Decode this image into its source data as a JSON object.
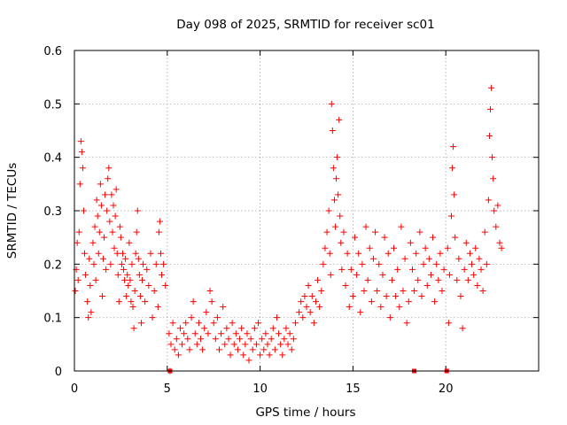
{
  "chart_data": {
    "type": "scatter",
    "title": "Day 098 of 2025, SRMTID for receiver sc01",
    "xlabel": "GPS time / hours",
    "ylabel": "SRMTID / TECUs",
    "xlim": [
      0,
      25
    ],
    "ylim": [
      0,
      0.6
    ],
    "xticks": [
      0,
      5,
      10,
      15,
      20
    ],
    "xtick_labels": [
      "0",
      "5",
      "10",
      "15",
      "20"
    ],
    "yticks": [
      0,
      0.1,
      0.2,
      0.3,
      0.4,
      0.5,
      0.6
    ],
    "ytick_labels": [
      "0",
      "0.1",
      "0.2",
      "0.3",
      "0.4",
      "0.5",
      "0.6"
    ],
    "grid": true,
    "marker": "plus",
    "color": "#ff0000",
    "series": [
      {
        "name": "sc01",
        "points": [
          [
            0.05,
            0.15
          ],
          [
            0.1,
            0.19
          ],
          [
            0.15,
            0.24
          ],
          [
            0.2,
            0.17
          ],
          [
            0.25,
            0.26
          ],
          [
            0.3,
            0.35
          ],
          [
            0.35,
            0.43
          ],
          [
            0.4,
            0.41
          ],
          [
            0.45,
            0.38
          ],
          [
            0.5,
            0.3
          ],
          [
            0.55,
            0.22
          ],
          [
            0.6,
            0.18
          ],
          [
            0.7,
            0.13
          ],
          [
            0.75,
            0.1
          ],
          [
            0.8,
            0.21
          ],
          [
            0.85,
            0.16
          ],
          [
            0.9,
            0.11
          ],
          [
            1.0,
            0.24
          ],
          [
            1.05,
            0.2
          ],
          [
            1.1,
            0.27
          ],
          [
            1.15,
            0.17
          ],
          [
            1.2,
            0.32
          ],
          [
            1.25,
            0.29
          ],
          [
            1.3,
            0.22
          ],
          [
            1.35,
            0.26
          ],
          [
            1.4,
            0.35
          ],
          [
            1.45,
            0.31
          ],
          [
            1.5,
            0.14
          ],
          [
            1.55,
            0.21
          ],
          [
            1.6,
            0.25
          ],
          [
            1.65,
            0.33
          ],
          [
            1.7,
            0.19
          ],
          [
            1.75,
            0.3
          ],
          [
            1.8,
            0.36
          ],
          [
            1.85,
            0.38
          ],
          [
            1.9,
            0.28
          ],
          [
            1.95,
            0.2
          ],
          [
            2.0,
            0.33
          ],
          [
            2.05,
            0.26
          ],
          [
            2.1,
            0.31
          ],
          [
            2.15,
            0.23
          ],
          [
            2.2,
            0.29
          ],
          [
            2.25,
            0.34
          ],
          [
            2.3,
            0.22
          ],
          [
            2.35,
            0.18
          ],
          [
            2.4,
            0.13
          ],
          [
            2.45,
            0.27
          ],
          [
            2.5,
            0.25
          ],
          [
            2.55,
            0.2
          ],
          [
            2.6,
            0.22
          ],
          [
            2.65,
            0.19
          ],
          [
            2.7,
            0.17
          ],
          [
            2.75,
            0.21
          ],
          [
            2.8,
            0.14
          ],
          [
            2.85,
            0.18
          ],
          [
            2.9,
            0.16
          ],
          [
            2.95,
            0.24
          ],
          [
            3.0,
            0.17
          ],
          [
            3.05,
            0.13
          ],
          [
            3.1,
            0.2
          ],
          [
            3.15,
            0.12
          ],
          [
            3.2,
            0.08
          ],
          [
            3.25,
            0.15
          ],
          [
            3.3,
            0.22
          ],
          [
            3.35,
            0.26
          ],
          [
            3.4,
            0.3
          ],
          [
            3.45,
            0.21
          ],
          [
            3.5,
            0.18
          ],
          [
            3.55,
            0.14
          ],
          [
            3.6,
            0.09
          ],
          [
            3.65,
            0.17
          ],
          [
            3.7,
            0.2
          ],
          [
            3.8,
            0.13
          ],
          [
            3.9,
            0.19
          ],
          [
            4.0,
            0.16
          ],
          [
            4.1,
            0.22
          ],
          [
            4.2,
            0.1
          ],
          [
            4.3,
            0.15
          ],
          [
            4.4,
            0.2
          ],
          [
            4.5,
            0.12
          ],
          [
            4.55,
            0.26
          ],
          [
            4.6,
            0.28
          ],
          [
            4.65,
            0.22
          ],
          [
            4.7,
            0.18
          ],
          [
            4.8,
            0.2
          ],
          [
            4.9,
            0.16
          ],
          [
            5.1,
            0.07
          ],
          [
            5.15,
            0.0
          ],
          [
            5.2,
            0.05
          ],
          [
            5.3,
            0.09
          ],
          [
            5.4,
            0.04
          ],
          [
            5.5,
            0.06
          ],
          [
            5.6,
            0.03
          ],
          [
            5.7,
            0.08
          ],
          [
            5.8,
            0.05
          ],
          [
            5.9,
            0.07
          ],
          [
            6.0,
            0.09
          ],
          [
            6.1,
            0.06
          ],
          [
            6.2,
            0.04
          ],
          [
            6.3,
            0.1
          ],
          [
            6.4,
            0.13
          ],
          [
            6.5,
            0.07
          ],
          [
            6.6,
            0.05
          ],
          [
            6.7,
            0.09
          ],
          [
            6.8,
            0.06
          ],
          [
            6.9,
            0.04
          ],
          [
            7.0,
            0.08
          ],
          [
            7.1,
            0.11
          ],
          [
            7.2,
            0.07
          ],
          [
            7.3,
            0.15
          ],
          [
            7.4,
            0.13
          ],
          [
            7.5,
            0.09
          ],
          [
            7.6,
            0.06
          ],
          [
            7.7,
            0.1
          ],
          [
            7.8,
            0.04
          ],
          [
            7.9,
            0.07
          ],
          [
            8.0,
            0.12
          ],
          [
            8.1,
            0.05
          ],
          [
            8.2,
            0.08
          ],
          [
            8.3,
            0.06
          ],
          [
            8.4,
            0.03
          ],
          [
            8.5,
            0.09
          ],
          [
            8.6,
            0.05
          ],
          [
            8.7,
            0.07
          ],
          [
            8.8,
            0.04
          ],
          [
            8.9,
            0.06
          ],
          [
            9.0,
            0.08
          ],
          [
            9.1,
            0.03
          ],
          [
            9.2,
            0.05
          ],
          [
            9.3,
            0.07
          ],
          [
            9.4,
            0.02
          ],
          [
            9.5,
            0.06
          ],
          [
            9.6,
            0.04
          ],
          [
            9.7,
            0.08
          ],
          [
            9.8,
            0.05
          ],
          [
            9.9,
            0.09
          ],
          [
            10.0,
            0.03
          ],
          [
            10.1,
            0.06
          ],
          [
            10.2,
            0.04
          ],
          [
            10.3,
            0.07
          ],
          [
            10.4,
            0.05
          ],
          [
            10.5,
            0.03
          ],
          [
            10.6,
            0.06
          ],
          [
            10.7,
            0.08
          ],
          [
            10.8,
            0.04
          ],
          [
            10.9,
            0.1
          ],
          [
            11.0,
            0.07
          ],
          [
            11.1,
            0.05
          ],
          [
            11.2,
            0.03
          ],
          [
            11.3,
            0.06
          ],
          [
            11.4,
            0.08
          ],
          [
            11.5,
            0.05
          ],
          [
            11.6,
            0.07
          ],
          [
            11.7,
            0.04
          ],
          [
            11.8,
            0.06
          ],
          [
            11.9,
            0.09
          ],
          [
            12.1,
            0.11
          ],
          [
            12.2,
            0.13
          ],
          [
            12.3,
            0.1
          ],
          [
            12.4,
            0.14
          ],
          [
            12.5,
            0.12
          ],
          [
            12.6,
            0.16
          ],
          [
            12.7,
            0.11
          ],
          [
            12.8,
            0.14
          ],
          [
            12.9,
            0.09
          ],
          [
            13.0,
            0.13
          ],
          [
            13.1,
            0.17
          ],
          [
            13.2,
            0.12
          ],
          [
            13.3,
            0.15
          ],
          [
            13.4,
            0.2
          ],
          [
            13.5,
            0.23
          ],
          [
            13.6,
            0.26
          ],
          [
            13.7,
            0.3
          ],
          [
            13.75,
            0.22
          ],
          [
            13.8,
            0.18
          ],
          [
            13.85,
            0.5
          ],
          [
            13.9,
            0.45
          ],
          [
            13.95,
            0.38
          ],
          [
            14.0,
            0.32
          ],
          [
            14.05,
            0.27
          ],
          [
            14.1,
            0.36
          ],
          [
            14.15,
            0.4
          ],
          [
            14.2,
            0.33
          ],
          [
            14.25,
            0.47
          ],
          [
            14.3,
            0.29
          ],
          [
            14.35,
            0.24
          ],
          [
            14.4,
            0.19
          ],
          [
            14.5,
            0.26
          ],
          [
            14.6,
            0.16
          ],
          [
            14.7,
            0.22
          ],
          [
            14.8,
            0.12
          ],
          [
            14.9,
            0.19
          ],
          [
            15.0,
            0.14
          ],
          [
            15.1,
            0.25
          ],
          [
            15.2,
            0.18
          ],
          [
            15.3,
            0.22
          ],
          [
            15.4,
            0.11
          ],
          [
            15.5,
            0.2
          ],
          [
            15.6,
            0.15
          ],
          [
            15.7,
            0.27
          ],
          [
            15.8,
            0.17
          ],
          [
            15.9,
            0.23
          ],
          [
            16.0,
            0.13
          ],
          [
            16.1,
            0.21
          ],
          [
            16.2,
            0.26
          ],
          [
            16.3,
            0.15
          ],
          [
            16.4,
            0.2
          ],
          [
            16.5,
            0.12
          ],
          [
            16.6,
            0.18
          ],
          [
            16.7,
            0.25
          ],
          [
            16.8,
            0.14
          ],
          [
            16.9,
            0.22
          ],
          [
            17.0,
            0.1
          ],
          [
            17.1,
            0.17
          ],
          [
            17.2,
            0.23
          ],
          [
            17.3,
            0.14
          ],
          [
            17.4,
            0.19
          ],
          [
            17.5,
            0.12
          ],
          [
            17.6,
            0.27
          ],
          [
            17.7,
            0.15
          ],
          [
            17.8,
            0.21
          ],
          [
            17.9,
            0.09
          ],
          [
            18.0,
            0.13
          ],
          [
            18.1,
            0.24
          ],
          [
            18.2,
            0.19
          ],
          [
            18.3,
            0.15
          ],
          [
            18.4,
            0.22
          ],
          [
            18.5,
            0.17
          ],
          [
            18.6,
            0.26
          ],
          [
            18.7,
            0.14
          ],
          [
            18.8,
            0.2
          ],
          [
            18.9,
            0.23
          ],
          [
            19.0,
            0.16
          ],
          [
            19.1,
            0.21
          ],
          [
            19.2,
            0.18
          ],
          [
            19.3,
            0.25
          ],
          [
            19.4,
            0.13
          ],
          [
            19.5,
            0.2
          ],
          [
            19.6,
            0.17
          ],
          [
            19.7,
            0.22
          ],
          [
            19.8,
            0.15
          ],
          [
            19.9,
            0.19
          ],
          [
            20.1,
            0.23
          ],
          [
            20.15,
            0.09
          ],
          [
            20.2,
            0.18
          ],
          [
            20.3,
            0.29
          ],
          [
            20.35,
            0.38
          ],
          [
            20.4,
            0.42
          ],
          [
            20.45,
            0.33
          ],
          [
            20.5,
            0.25
          ],
          [
            20.6,
            0.17
          ],
          [
            20.7,
            0.21
          ],
          [
            20.8,
            0.14
          ],
          [
            20.9,
            0.08
          ],
          [
            21.0,
            0.19
          ],
          [
            21.1,
            0.24
          ],
          [
            21.2,
            0.17
          ],
          [
            21.3,
            0.22
          ],
          [
            21.4,
            0.2
          ],
          [
            21.5,
            0.18
          ],
          [
            21.6,
            0.23
          ],
          [
            21.7,
            0.16
          ],
          [
            21.8,
            0.21
          ],
          [
            21.9,
            0.19
          ],
          [
            22.0,
            0.15
          ],
          [
            22.1,
            0.26
          ],
          [
            22.2,
            0.2
          ],
          [
            22.3,
            0.32
          ],
          [
            22.35,
            0.44
          ],
          [
            22.4,
            0.49
          ],
          [
            22.45,
            0.53
          ],
          [
            22.5,
            0.4
          ],
          [
            22.55,
            0.36
          ],
          [
            22.6,
            0.3
          ],
          [
            22.7,
            0.27
          ],
          [
            22.8,
            0.31
          ],
          [
            22.9,
            0.24
          ],
          [
            23.0,
            0.23
          ]
        ],
        "zero_markers": [
          5.15,
          18.3,
          20.05
        ]
      }
    ]
  }
}
